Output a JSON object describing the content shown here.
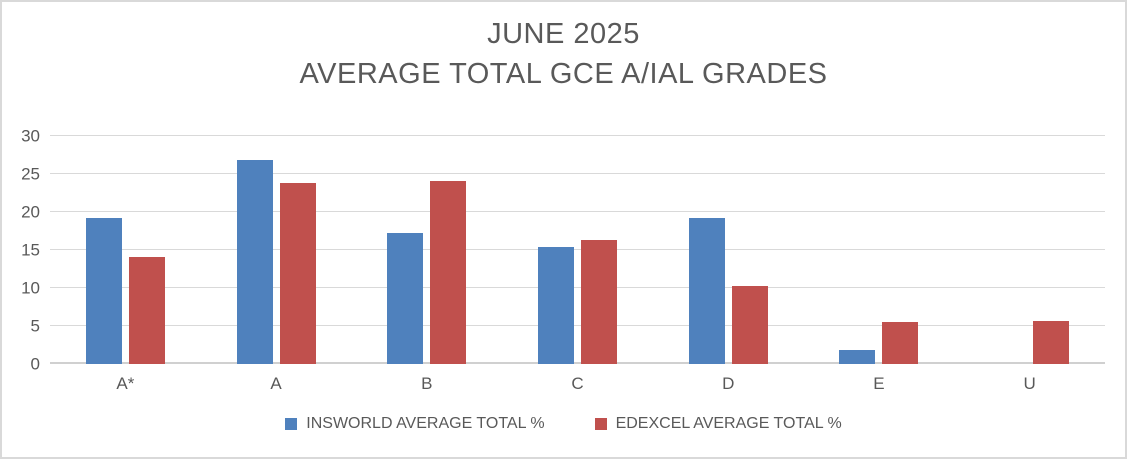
{
  "title": {
    "line1": "JUNE 2025",
    "line2": "AVERAGE TOTAL GCE A/IAL GRADES"
  },
  "colors": {
    "insworld_blue": "#4F81BD",
    "edexcel_red": "#C0504D",
    "text_grey": "#595959",
    "gridline_grey": "#D9D9D9",
    "frame_border": "#D9D9D9"
  },
  "chart_data": {
    "type": "bar",
    "title": "JUNE 2025 AVERAGE TOTAL GCE A/IAL GRADES",
    "categories": [
      "A*",
      "A",
      "B",
      "C",
      "D",
      "E",
      "U"
    ],
    "series": [
      {
        "name": "INSWORLD AVERAGE TOTAL %",
        "color": "#4F81BD",
        "values": [
          19.2,
          26.8,
          17.3,
          15.4,
          19.2,
          1.9,
          0
        ]
      },
      {
        "name": "EDEXCEL AVERAGE TOTAL %",
        "color": "#C0504D",
        "values": [
          14.1,
          23.8,
          24.1,
          16.3,
          10.3,
          5.5,
          5.7
        ]
      }
    ],
    "xlabel": "",
    "ylabel": "",
    "ylim": [
      0,
      30
    ],
    "yticks": [
      0,
      5,
      10,
      15,
      20,
      25,
      30
    ],
    "grid": true,
    "legend_position": "bottom"
  }
}
